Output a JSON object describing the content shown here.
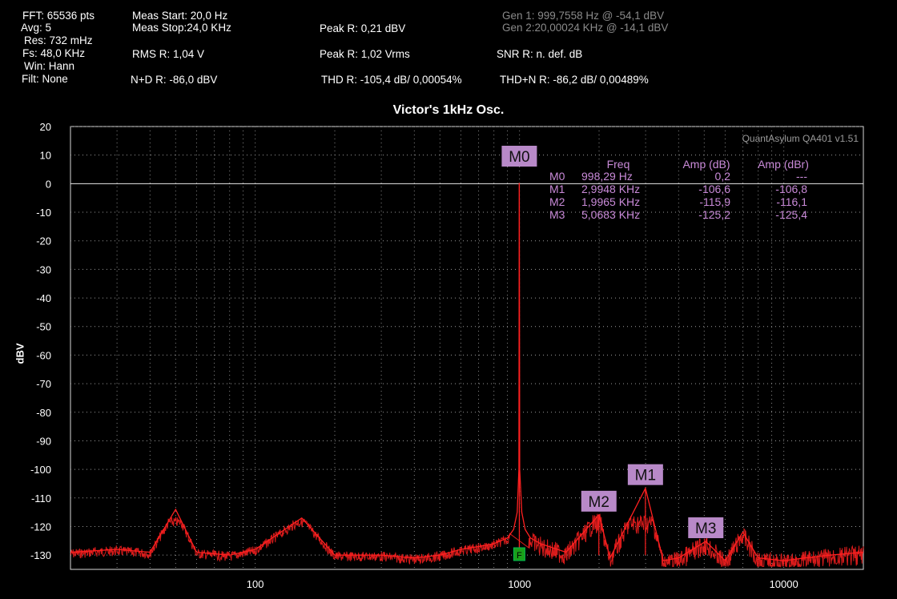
{
  "header": {
    "fft": "FFT: 65536 pts",
    "avg": "Avg: 5",
    "res": "Res: 732 mHz",
    "fs": "Fs: 48,0 KHz",
    "win": "Win: Hann",
    "filt": "Filt: None",
    "meas_start": "Meas Start: 20,0 Hz",
    "meas_stop": "Meas Stop:24,0 KHz",
    "rms": "RMS R: 1,04 V",
    "nd": "N+D R: -86,0 dBV",
    "peak_dbv": "Peak R: 0,21 dBV",
    "peak_vrms": "Peak R: 1,02 Vrms",
    "thd": "THD R: -105,4 dB/ 0,00054%",
    "gen1": "Gen 1: 999,7558 Hz @ -54,1  dBV",
    "gen2": "Gen 2:20,00024 KHz @ -14,1  dBV",
    "snr": "SNR R: n. def. dB",
    "thdn": "THD+N R: -86,2 dB/ 0,00489%"
  },
  "chart_data": {
    "type": "line",
    "title": "Victor's 1kHz Osc.",
    "xlabel": "",
    "ylabel": "dBV",
    "xscale": "log",
    "xlim": [
      20,
      20000
    ],
    "ylim": [
      -135,
      20
    ],
    "y_ticks": [
      20,
      10,
      0,
      -10,
      -20,
      -30,
      -40,
      -50,
      -60,
      -70,
      -80,
      -90,
      -100,
      -110,
      -120,
      -130
    ],
    "x_ticks": [
      100,
      1000,
      10000
    ],
    "x_tick_labels": [
      "100",
      "1000",
      "10000"
    ],
    "grid": true,
    "watermark": "QuantAsylum QA401 v1.51",
    "series": [
      {
        "color": "#ff2020",
        "x": [
          20,
          30,
          40,
          50,
          60,
          80,
          100,
          150,
          200,
          300,
          400,
          500,
          600,
          700,
          800,
          900,
          950,
          980,
          995,
          998.29,
          1002,
          1020,
          1050,
          1100,
          1200,
          1500,
          1997,
          2200,
          2995,
          3500,
          4000,
          5068,
          6000,
          7000,
          8000,
          10000,
          12000,
          15000,
          20000
        ],
        "y": [
          -129,
          -128,
          -129,
          -114,
          -129,
          -130,
          -128,
          -117,
          -130,
          -130,
          -131,
          -130,
          -128,
          -127,
          -126,
          -124,
          -121,
          -115,
          -100,
          0.2,
          -100,
          -115,
          -121,
          -124,
          -126,
          -129,
          -115.9,
          -131,
          -106.6,
          -132,
          -131,
          -125.2,
          -132,
          -122,
          -131,
          -132,
          -131,
          -130,
          -129
        ]
      }
    ],
    "markers": [
      {
        "label": "M0",
        "x": 998.29,
        "y": 0.2
      },
      {
        "label": "M1",
        "x": 2994.8,
        "y": -106.6
      },
      {
        "label": "M2",
        "x": 1996.5,
        "y": -115.9
      },
      {
        "label": "M3",
        "x": 5068.3,
        "y": -125.2
      }
    ],
    "marker_table": {
      "headers": [
        "",
        "Freq",
        "Amp (dB)",
        "Amp (dBr)"
      ],
      "rows": [
        [
          "M0",
          "998,29 Hz",
          "0,2",
          "---"
        ],
        [
          "M1",
          "2,9948 KHz",
          "-106,6",
          "-106,8"
        ],
        [
          "M2",
          "1,9965 KHz",
          "-115,9",
          "-116,1"
        ],
        [
          "M3",
          "5,0683 KHz",
          "-125,2",
          "-125,4"
        ]
      ]
    },
    "fundamental_flag": "F",
    "reference_line_y": 0
  }
}
